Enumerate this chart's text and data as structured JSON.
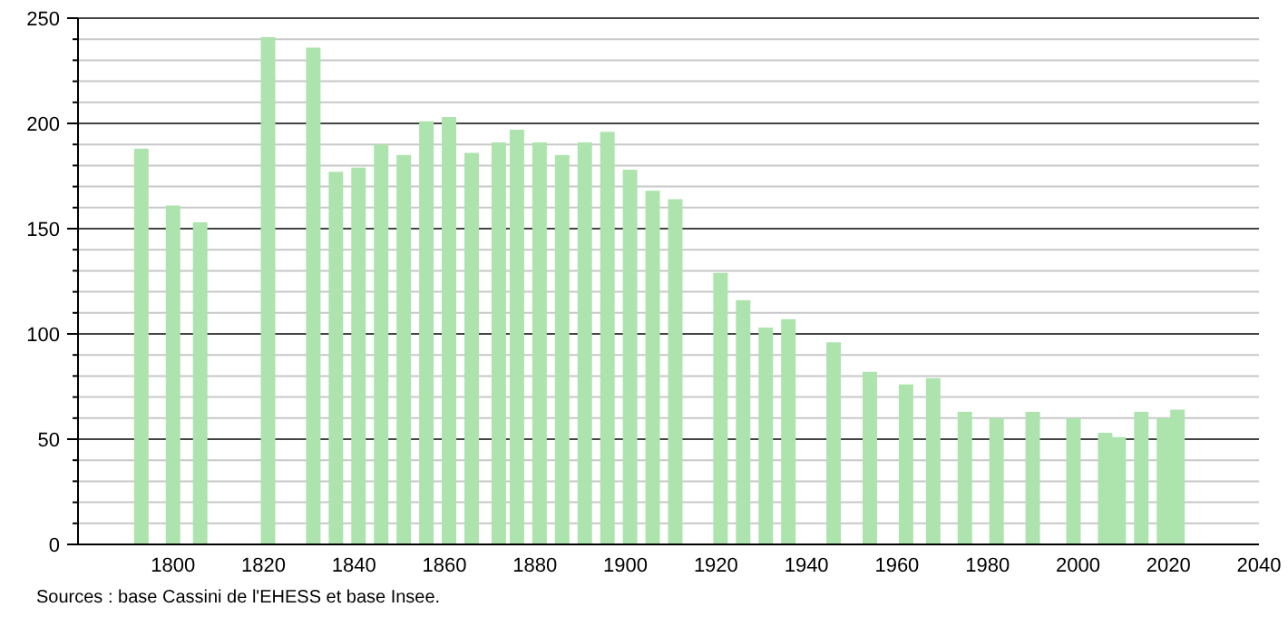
{
  "chart_data": {
    "type": "bar",
    "x": [
      1793,
      1800,
      1806,
      1821,
      1831,
      1836,
      1841,
      1846,
      1851,
      1856,
      1861,
      1866,
      1872,
      1876,
      1881,
      1886,
      1891,
      1896,
      1901,
      1906,
      1911,
      1921,
      1926,
      1931,
      1936,
      1946,
      1954,
      1962,
      1968,
      1975,
      1982,
      1990,
      1999,
      2006,
      2009,
      2014,
      2019,
      2022
    ],
    "values": [
      188,
      161,
      153,
      241,
      236,
      177,
      179,
      190,
      185,
      201,
      203,
      186,
      191,
      197,
      191,
      185,
      191,
      196,
      178,
      168,
      164,
      129,
      116,
      103,
      107,
      96,
      82,
      76,
      79,
      63,
      60,
      63,
      60,
      53,
      51,
      63,
      60,
      64
    ],
    "color": "#ade3ad",
    "xlim": [
      1779,
      2040
    ],
    "xticks": [
      1800,
      1820,
      1840,
      1860,
      1880,
      1900,
      1920,
      1940,
      1960,
      1980,
      2000,
      2020,
      2040
    ],
    "ylim": [
      0,
      250
    ],
    "yticks": [
      0,
      {
        "value": 10,
        "label": null
      },
      {
        "value": 20,
        "label": null
      },
      {
        "value": 30,
        "label": null
      },
      {
        "value": 40,
        "label": null
      },
      50,
      {
        "value": 60,
        "label": null
      },
      {
        "value": 70,
        "label": null
      },
      {
        "value": 80,
        "label": null
      },
      {
        "value": 90,
        "label": null
      },
      100,
      {
        "value": 110,
        "label": null
      },
      {
        "value": 120,
        "label": null
      },
      {
        "value": 130,
        "label": null
      },
      {
        "value": 140,
        "label": null
      },
      150,
      {
        "value": 160,
        "label": null
      },
      {
        "value": 170,
        "label": null
      },
      {
        "value": 180,
        "label": null
      },
      {
        "value": 190,
        "label": null
      },
      200,
      {
        "value": 210,
        "label": null
      },
      {
        "value": 220,
        "label": null
      },
      {
        "value": 230,
        "label": null
      },
      {
        "value": 240,
        "label": null
      },
      250
    ],
    "grid": "y",
    "annotations": [
      "Sources : base Cassini de l'EHESS et base Insee."
    ]
  }
}
